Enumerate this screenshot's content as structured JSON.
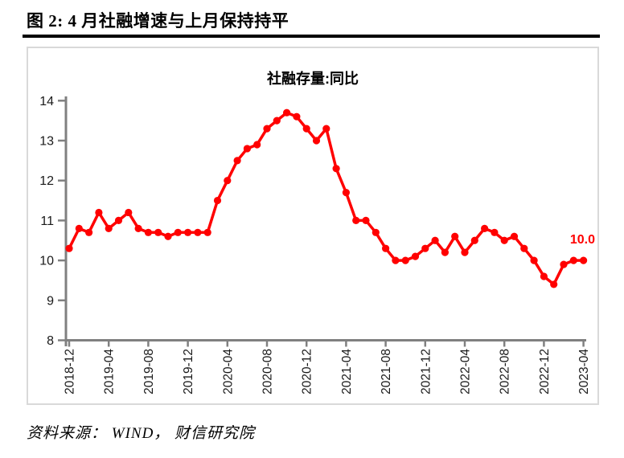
{
  "header": {
    "title": "图 2: 4 月社融增速与上月保持持平"
  },
  "footer": {
    "source": "资料来源： WIND， 财信研究院"
  },
  "colors": {
    "line": "#FF0000",
    "axis": "#808080",
    "border": "#D9D9D9",
    "tick_text": "#1A1A1A"
  },
  "chart_data": {
    "type": "line",
    "title": "社融存量:同比",
    "xlabel": "",
    "ylabel": "",
    "ylim": [
      8,
      14
    ],
    "y_ticks": [
      8,
      9,
      10,
      11,
      12,
      13,
      14
    ],
    "x_tick_every": 4,
    "grid": false,
    "legend_position": "none",
    "end_label": "10.0",
    "x": [
      "2018-12",
      "2019-01",
      "2019-02",
      "2019-03",
      "2019-04",
      "2019-05",
      "2019-06",
      "2019-07",
      "2019-08",
      "2019-09",
      "2019-10",
      "2019-11",
      "2019-12",
      "2020-01",
      "2020-02",
      "2020-03",
      "2020-04",
      "2020-05",
      "2020-06",
      "2020-07",
      "2020-08",
      "2020-09",
      "2020-10",
      "2020-11",
      "2020-12",
      "2021-01",
      "2021-02",
      "2021-03",
      "2021-04",
      "2021-05",
      "2021-06",
      "2021-07",
      "2021-08",
      "2021-09",
      "2021-10",
      "2021-11",
      "2021-12",
      "2022-01",
      "2022-02",
      "2022-03",
      "2022-04",
      "2022-05",
      "2022-06",
      "2022-07",
      "2022-08",
      "2022-09",
      "2022-10",
      "2022-11",
      "2022-12",
      "2023-01",
      "2023-02",
      "2023-03",
      "2023-04"
    ],
    "values": [
      10.3,
      10.8,
      10.7,
      11.2,
      10.8,
      11.0,
      11.2,
      10.8,
      10.7,
      10.7,
      10.6,
      10.7,
      10.7,
      10.7,
      10.7,
      11.5,
      12.0,
      12.5,
      12.8,
      12.9,
      13.3,
      13.5,
      13.7,
      13.6,
      13.3,
      13.0,
      13.3,
      12.3,
      11.7,
      11.0,
      11.0,
      10.7,
      10.3,
      10.0,
      10.0,
      10.1,
      10.3,
      10.5,
      10.2,
      10.6,
      10.2,
      10.5,
      10.8,
      10.7,
      10.5,
      10.6,
      10.3,
      10.0,
      9.6,
      9.4,
      9.9,
      10.0,
      10.0
    ]
  }
}
